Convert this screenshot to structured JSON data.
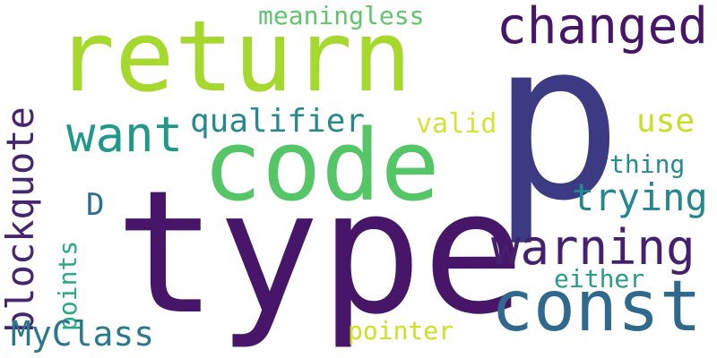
{
  "words": {
    "p": {
      "text": "p",
      "color": "#3b3a82"
    },
    "type": {
      "text": "type",
      "color": "#471669"
    },
    "return": {
      "text": "return",
      "color": "#a6d82e"
    },
    "code": {
      "text": "code",
      "color": "#55c667"
    },
    "const": {
      "text": "const",
      "color": "#2f6a8e"
    },
    "changed": {
      "text": "changed",
      "color": "#471669"
    },
    "warning": {
      "text": "warning",
      "color": "#45206f"
    },
    "blockquote": {
      "text": "blockquote",
      "color": "#46266f"
    },
    "want": {
      "text": "want",
      "color": "#21998a"
    },
    "qualifier": {
      "text": "qualifier",
      "color": "#268a8c"
    },
    "trying": {
      "text": "trying",
      "color": "#24868e"
    },
    "use": {
      "text": "use",
      "color": "#c7e025"
    },
    "meaningless": {
      "text": "meaningless",
      "color": "#60c56e"
    },
    "valid": {
      "text": "valid",
      "color": "#d5e336"
    },
    "thing": {
      "text": "thing",
      "color": "#278d8b"
    },
    "D": {
      "text": "D",
      "color": "#2d6e8e"
    },
    "points": {
      "text": "points",
      "color": "#28a987"
    },
    "either": {
      "text": "either",
      "color": "#259d88"
    },
    "MyClass": {
      "text": "MyClass",
      "color": "#2b778e"
    },
    "pointer": {
      "text": "pointer",
      "color": "#cde121"
    }
  }
}
